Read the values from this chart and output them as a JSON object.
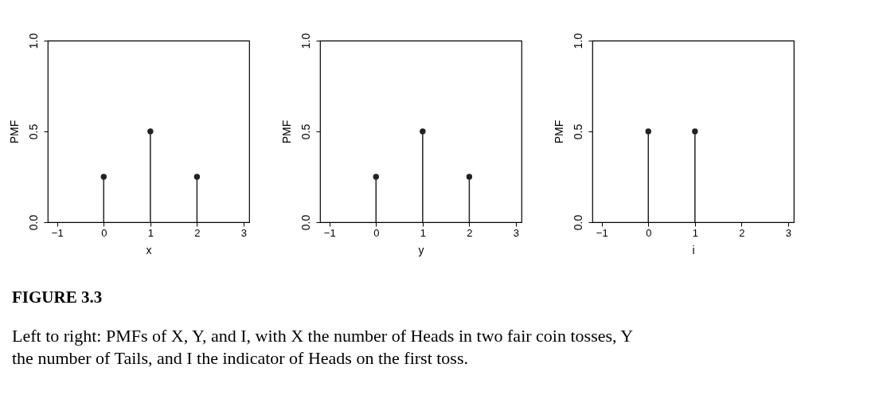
{
  "chart_data": [
    {
      "type": "lollipop",
      "xlabel": "x",
      "ylabel": "PMF",
      "x": [
        0,
        1,
        2
      ],
      "values": [
        0.25,
        0.5,
        0.25
      ],
      "color": "#222222",
      "marker": "circle",
      "xlim": [
        -1.2,
        3.12
      ],
      "xticks": [
        -1,
        0,
        1,
        2,
        3
      ],
      "ylim": [
        0,
        1
      ],
      "yticks": [
        {
          "value": 0,
          "label": "0.0"
        },
        {
          "value": 0.5,
          "label": "0.5"
        },
        {
          "value": 1,
          "label": "1.0"
        }
      ],
      "grid": false,
      "annotations": [
        "FIGURE 3.3",
        "Left to right: PMFs of X, Y, and I, with X the number of Heads in two fair coin tosses, Y the number of Tails, and I the indicator of Heads on the first toss."
      ]
    },
    {
      "type": "lollipop",
      "xlabel": "y",
      "ylabel": "PMF",
      "x": [
        0,
        1,
        2
      ],
      "values": [
        0.25,
        0.5,
        0.25
      ],
      "color": "#222222",
      "marker": "circle",
      "xlim": [
        -1.2,
        3.12
      ],
      "xticks": [
        -1,
        0,
        1,
        2,
        3
      ],
      "ylim": [
        0,
        1
      ],
      "yticks": [
        {
          "value": 0,
          "label": "0.0"
        },
        {
          "value": 0.5,
          "label": "0.5"
        },
        {
          "value": 1,
          "label": "1.0"
        }
      ],
      "grid": false
    },
    {
      "type": "lollipop",
      "xlabel": "i",
      "ylabel": "PMF",
      "x": [
        0,
        1
      ],
      "values": [
        0.5,
        0.5
      ],
      "color": "#222222",
      "marker": "circle",
      "xlim": [
        -1.2,
        3.12
      ],
      "xticks": [
        -1,
        0,
        1,
        2,
        3
      ],
      "ylim": [
        0,
        1
      ],
      "yticks": [
        {
          "value": 0,
          "label": "0.0"
        },
        {
          "value": 0.5,
          "label": "0.5"
        },
        {
          "value": 1,
          "label": "1.0"
        }
      ],
      "grid": false
    }
  ]
}
